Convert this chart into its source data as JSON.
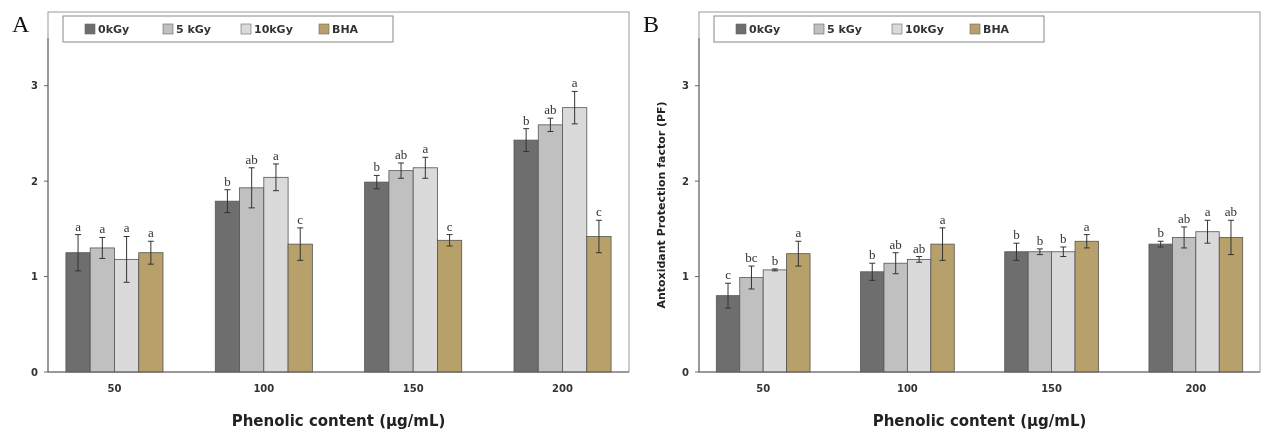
{
  "chart_data": [
    {
      "type": "bar",
      "title": "A",
      "xlabel": "Phenolic content (μg/mL)",
      "categories": [
        "50",
        "100",
        "150",
        "200"
      ],
      "ylim": [
        0,
        3.5
      ],
      "yticks": [
        0,
        1,
        2,
        3
      ],
      "grid": false,
      "legend": "top left",
      "series": [
        {
          "name": "0kGy",
          "color": "#6e6e6e",
          "values": [
            1.25,
            1.79,
            1.99,
            2.43
          ],
          "errors": [
            0.19,
            0.12,
            0.07,
            0.12
          ],
          "value_labels": [
            "a",
            "b",
            "b",
            "b"
          ]
        },
        {
          "name": "5 kGy",
          "color": "#c0c0c0",
          "values": [
            1.3,
            1.93,
            2.11,
            2.59
          ],
          "errors": [
            0.11,
            0.21,
            0.08,
            0.07
          ],
          "value_labels": [
            "a",
            "ab",
            "ab",
            "ab"
          ]
        },
        {
          "name": "10kGy",
          "color": "#dadada",
          "values": [
            1.18,
            2.04,
            2.14,
            2.77
          ],
          "errors": [
            0.24,
            0.14,
            0.11,
            0.17
          ],
          "value_labels": [
            "a",
            "a",
            "a",
            "a"
          ]
        },
        {
          "name": "BHA",
          "color": "#b8a06a",
          "values": [
            1.25,
            1.34,
            1.38,
            1.42
          ],
          "errors": [
            0.12,
            0.17,
            0.06,
            0.17
          ],
          "value_labels": [
            "a",
            "c",
            "c",
            "c"
          ]
        }
      ]
    },
    {
      "type": "bar",
      "title": "B",
      "xlabel": "Phenolic content (μg/mL)",
      "ylabel": "Antoxidant Protection factor (PF)",
      "categories": [
        "50",
        "100",
        "150",
        "200"
      ],
      "ylim": [
        0,
        3.5
      ],
      "yticks": [
        0,
        1,
        2,
        3
      ],
      "grid": false,
      "legend": "top left",
      "series": [
        {
          "name": "0kGy",
          "color": "#6e6e6e",
          "values": [
            0.8,
            1.05,
            1.26,
            1.34
          ],
          "errors": [
            0.13,
            0.09,
            0.09,
            0.03
          ],
          "value_labels": [
            "c",
            "b",
            "b",
            "b"
          ]
        },
        {
          "name": "5 kGy",
          "color": "#c0c0c0",
          "values": [
            0.99,
            1.14,
            1.26,
            1.41
          ],
          "errors": [
            0.12,
            0.11,
            0.03,
            0.11
          ],
          "value_labels": [
            "bc",
            "ab",
            "b",
            "ab"
          ]
        },
        {
          "name": "10kGy",
          "color": "#dadada",
          "values": [
            1.07,
            1.18,
            1.26,
            1.47
          ],
          "errors": [
            0.01,
            0.03,
            0.05,
            0.12
          ],
          "value_labels": [
            "b",
            "ab",
            "b",
            "a"
          ]
        },
        {
          "name": "BHA",
          "color": "#b8a06a",
          "values": [
            1.24,
            1.34,
            1.37,
            1.41
          ],
          "errors": [
            0.13,
            0.17,
            0.07,
            0.18
          ],
          "value_labels": [
            "a",
            "a",
            "a",
            "ab"
          ]
        }
      ]
    }
  ]
}
